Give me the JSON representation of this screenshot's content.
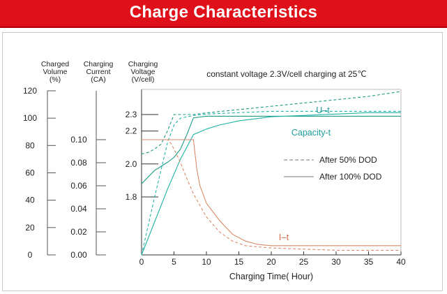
{
  "header": {
    "title": "Charge Characteristics"
  },
  "chart_data": {
    "type": "line",
    "subtitle": "constant voltage 2.3V/cell charging at 25℃",
    "xlabel": "Charging Time( Hour)",
    "xlim": [
      0,
      40
    ],
    "x_ticks": [
      "0",
      "5",
      "10",
      "15",
      "20",
      "25",
      "30",
      "35",
      "40"
    ],
    "axes": [
      {
        "id": "volume",
        "label": [
          "Charged",
          "Volume",
          "(%)"
        ],
        "ylim": [
          0,
          120
        ],
        "ticks": [
          "0",
          "20",
          "40",
          "60",
          "80",
          "100",
          "120"
        ]
      },
      {
        "id": "current",
        "label": [
          "Charging",
          "Current",
          "(CA)"
        ],
        "ylim": [
          0,
          0.12
        ],
        "ticks": [
          "0.00",
          "0.02",
          "0.04",
          "0.06",
          "0.08",
          "0.10"
        ]
      },
      {
        "id": "voltage",
        "label": [
          "Charging",
          "Voltage",
          "(V/cell)"
        ],
        "ylim": [
          1.6,
          2.5
        ],
        "ticks": [
          "1.8",
          "2.0",
          "2.2",
          "2.3"
        ]
      }
    ],
    "curve_labels": {
      "voltage": "U–t",
      "capacity": "Capacity-t",
      "current": "I–t"
    },
    "legend": {
      "position": "center-right",
      "entries": [
        {
          "label": "After 50% DOD",
          "style": "dashed"
        },
        {
          "label": "After 100% DOD",
          "style": "solid"
        }
      ]
    },
    "colors": {
      "voltage": "#1c9a86",
      "capacity": "#22b3a6",
      "current": "#d98a6a",
      "text_teal": "#1f9c9c",
      "text_current": "#d0704a",
      "axis": "#333333"
    },
    "series": [
      {
        "curve": "voltage",
        "dod": "100%",
        "axis": "voltage",
        "x": [
          0,
          2,
          4,
          5,
          6,
          7,
          8,
          10,
          15,
          20,
          25,
          30,
          35,
          40
        ],
        "y": [
          1.88,
          1.96,
          2.01,
          2.04,
          2.09,
          2.18,
          2.28,
          2.29,
          2.29,
          2.29,
          2.29,
          2.29,
          2.29,
          2.29
        ]
      },
      {
        "curve": "voltage",
        "dod": "50%",
        "axis": "voltage",
        "x": [
          0,
          1,
          2,
          3,
          4,
          5,
          6,
          7,
          8,
          10,
          15,
          20,
          25,
          30,
          35,
          40
        ],
        "y": [
          2.06,
          2.07,
          2.09,
          2.12,
          2.2,
          2.3,
          2.3,
          2.3,
          2.3,
          2.31,
          2.33,
          2.35,
          2.37,
          2.39,
          2.41,
          2.44
        ]
      },
      {
        "curve": "capacity",
        "dod": "100%",
        "axis": "volume",
        "x": [
          0,
          2,
          4,
          6,
          8,
          10,
          12,
          15,
          20,
          25,
          30,
          35,
          40
        ],
        "y": [
          0,
          24,
          48,
          70,
          88,
          92,
          95,
          98,
          101,
          102,
          103,
          104,
          104
        ]
      },
      {
        "curve": "capacity",
        "dod": "50%",
        "axis": "volume",
        "x": [
          0,
          2,
          4,
          5,
          6,
          8,
          10,
          15,
          20,
          30,
          40
        ],
        "y": [
          0,
          42,
          82,
          95,
          100,
          102,
          103,
          104,
          105,
          105,
          105
        ]
      },
      {
        "curve": "current",
        "dod": "100%",
        "axis": "current",
        "x": [
          0,
          8,
          8.5,
          9,
          10,
          12,
          14,
          16,
          18,
          20,
          30,
          40
        ],
        "y": [
          0.1,
          0.1,
          0.075,
          0.06,
          0.045,
          0.03,
          0.018,
          0.012,
          0.009,
          0.008,
          0.008,
          0.008
        ]
      },
      {
        "curve": "current",
        "dod": "50%",
        "axis": "current",
        "x": [
          0,
          4,
          4.5,
          5,
          6,
          7,
          8,
          10,
          12,
          14,
          16,
          20,
          30,
          40
        ],
        "y": [
          0.1,
          0.1,
          0.097,
          0.092,
          0.08,
          0.066,
          0.053,
          0.033,
          0.02,
          0.012,
          0.008,
          0.006,
          0.004,
          0.004
        ]
      }
    ]
  }
}
